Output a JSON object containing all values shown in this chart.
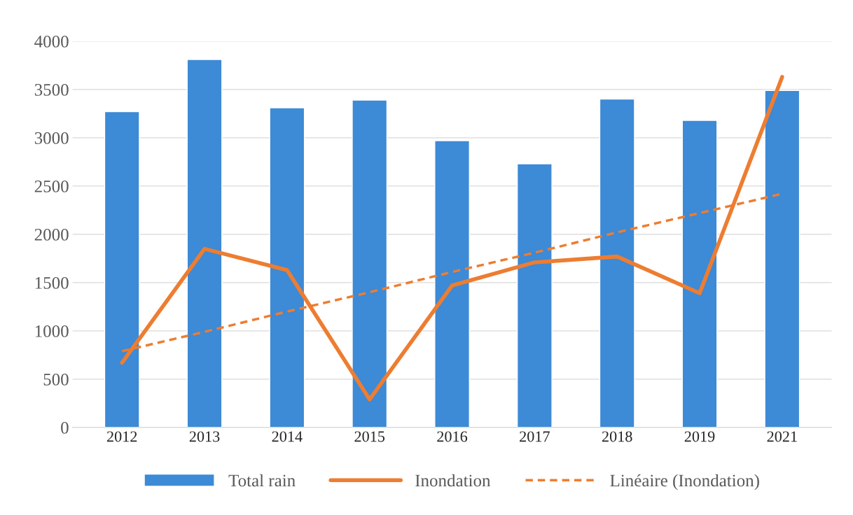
{
  "chart_data": {
    "type": "bar",
    "categories": [
      "2012",
      "2013",
      "2014",
      "2015",
      "2016",
      "2017",
      "2018",
      "2019",
      "2021"
    ],
    "series": [
      {
        "name": "Total rain",
        "color": "#3d8ad6",
        "values": [
          3270,
          3810,
          3310,
          3390,
          2970,
          2730,
          3400,
          3180,
          3490
        ]
      },
      {
        "name": "Inondation",
        "type": "line",
        "color": "#ed7d31",
        "line_style": "solid",
        "values": [
          670,
          1850,
          1630,
          290,
          1470,
          1710,
          1770,
          1390,
          3630
        ]
      },
      {
        "name": "Linéaire (Inondation)",
        "type": "line",
        "color": "#ed7d31",
        "line_style": "dashed",
        "values": [
          790,
          990,
          1200,
          1400,
          1610,
          1810,
          2020,
          2220,
          2420
        ]
      }
    ],
    "ylim": [
      0,
      4000
    ],
    "yticks": [
      0,
      500,
      1000,
      1500,
      2000,
      2500,
      3000,
      3500,
      4000
    ],
    "grid": "y",
    "legend": "bottom"
  }
}
